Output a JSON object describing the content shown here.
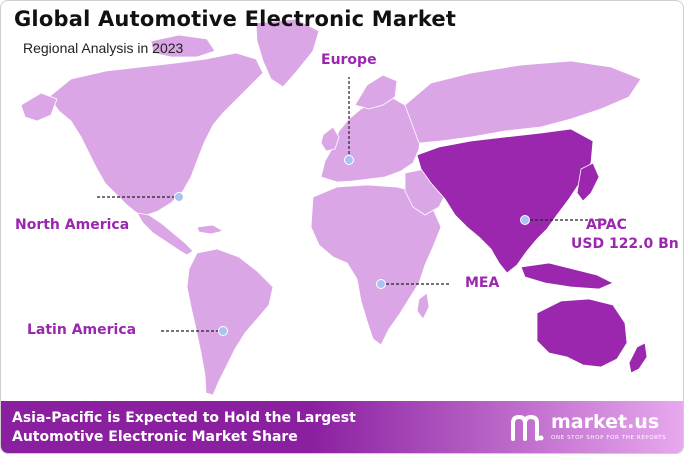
{
  "title": "Global Automotive Electronic Market",
  "subtitle": "Regional Analysis in 2023",
  "colors": {
    "land": "#dba6e6",
    "highlight": "#9b27af",
    "label": "#9b27af",
    "marker": "#a9c3f0",
    "footer_start": "#8a1fa0",
    "footer_end": "#e8a9ee"
  },
  "chart_data": {
    "type": "map",
    "regions": [
      {
        "name": "North America",
        "highlighted": false
      },
      {
        "name": "Europe",
        "highlighted": false
      },
      {
        "name": "APAC",
        "value_label": "USD 122.0 Bn",
        "highlighted": true
      },
      {
        "name": "MEA",
        "highlighted": false
      },
      {
        "name": "Latin America",
        "highlighted": false
      }
    ]
  },
  "footer": {
    "line1": "Asia-Pacific is Expected to Hold the Largest",
    "line2": "Automotive Electronic Market Share",
    "brand_name": "market.us",
    "brand_tagline": "ONE STOP SHOP FOR THE REPORTS",
    "logo_icon": "market-us-logo-icon"
  }
}
